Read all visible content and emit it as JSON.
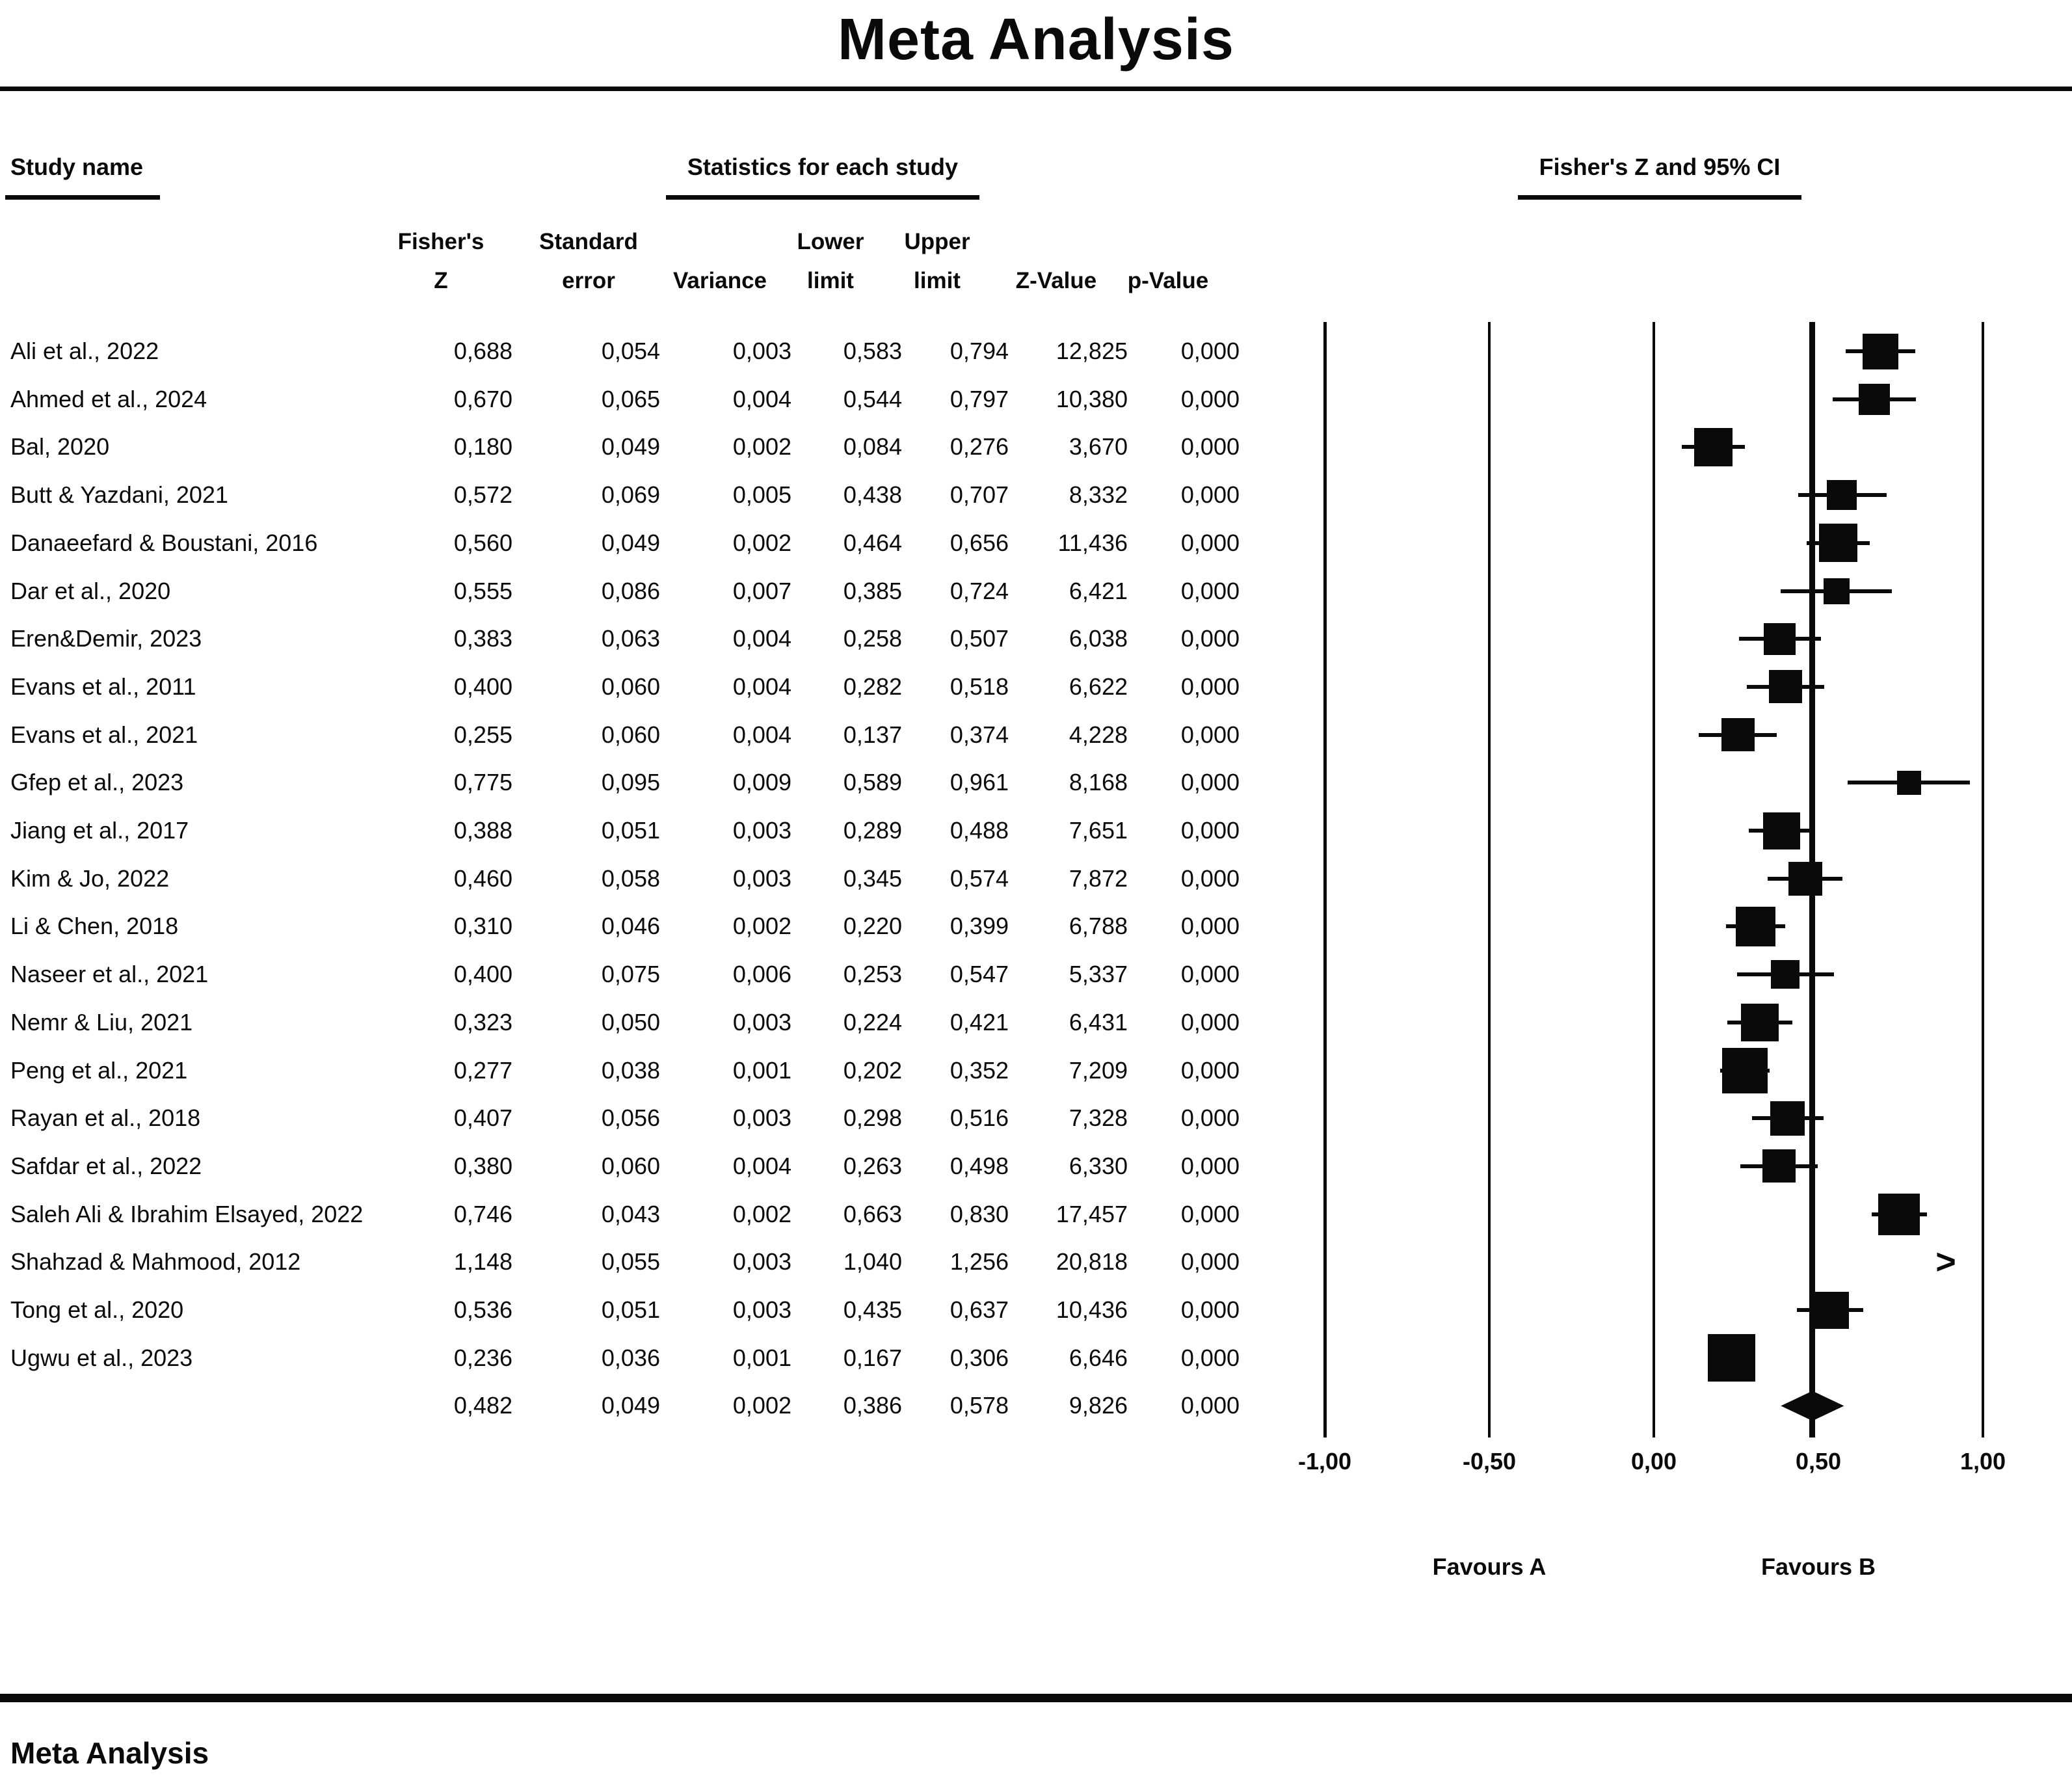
{
  "title": "Meta Analysis",
  "header": {
    "study_name": "Study name",
    "statistics_group": "Statistics for each study",
    "plot_group": "Fisher's Z and 95% CI",
    "columns": [
      {
        "top": "Fisher's",
        "bottom": "Z"
      },
      {
        "top": "Standard",
        "bottom": "error"
      },
      {
        "top": "",
        "bottom": "Variance"
      },
      {
        "top": "Lower",
        "bottom": "limit"
      },
      {
        "top": "Upper",
        "bottom": "limit"
      },
      {
        "top": "",
        "bottom": "Z-Value"
      },
      {
        "top": "",
        "bottom": "p-Value"
      }
    ]
  },
  "footer": {
    "title": "Meta Analysis"
  },
  "chart_data": {
    "type": "forest",
    "effect_measure": "Fisher's Z",
    "x_axis": {
      "range": [
        -1,
        1
      ],
      "ticks": [
        {
          "value": -1.0,
          "label": "-1,00"
        },
        {
          "value": -0.5,
          "label": "-0,50"
        },
        {
          "value": 0.0,
          "label": "0,00"
        },
        {
          "value": 0.5,
          "label": "0,50"
        },
        {
          "value": 1.0,
          "label": "1,00"
        }
      ]
    },
    "favours_left": "Favours A",
    "favours_right": "Favours B",
    "pooled_reference_line": 0.482,
    "studies": [
      {
        "name": "Ali et al., 2022",
        "fishers_z": 0.688,
        "standard_error": 0.054,
        "variance": 0.003,
        "lower_limit": 0.583,
        "upper_limit": 0.794,
        "z_value": 12.825,
        "p_value": 0.0
      },
      {
        "name": "Ahmed et al., 2024",
        "fishers_z": 0.67,
        "standard_error": 0.065,
        "variance": 0.004,
        "lower_limit": 0.544,
        "upper_limit": 0.797,
        "z_value": 10.38,
        "p_value": 0.0
      },
      {
        "name": "Bal, 2020",
        "fishers_z": 0.18,
        "standard_error": 0.049,
        "variance": 0.002,
        "lower_limit": 0.084,
        "upper_limit": 0.276,
        "z_value": 3.67,
        "p_value": 0.0
      },
      {
        "name": "Butt & Yazdani, 2021",
        "fishers_z": 0.572,
        "standard_error": 0.069,
        "variance": 0.005,
        "lower_limit": 0.438,
        "upper_limit": 0.707,
        "z_value": 8.332,
        "p_value": 0.0
      },
      {
        "name": "Danaeefard & Boustani, 2016",
        "fishers_z": 0.56,
        "standard_error": 0.049,
        "variance": 0.002,
        "lower_limit": 0.464,
        "upper_limit": 0.656,
        "z_value": 11.436,
        "p_value": 0.0
      },
      {
        "name": "Dar et al., 2020",
        "fishers_z": 0.555,
        "standard_error": 0.086,
        "variance": 0.007,
        "lower_limit": 0.385,
        "upper_limit": 0.724,
        "z_value": 6.421,
        "p_value": 0.0
      },
      {
        "name": "Eren&Demir, 2023",
        "fishers_z": 0.383,
        "standard_error": 0.063,
        "variance": 0.004,
        "lower_limit": 0.258,
        "upper_limit": 0.507,
        "z_value": 6.038,
        "p_value": 0.0
      },
      {
        "name": "Evans et al., 2011",
        "fishers_z": 0.4,
        "standard_error": 0.06,
        "variance": 0.004,
        "lower_limit": 0.282,
        "upper_limit": 0.518,
        "z_value": 6.622,
        "p_value": 0.0
      },
      {
        "name": "Evans et al., 2021",
        "fishers_z": 0.255,
        "standard_error": 0.06,
        "variance": 0.004,
        "lower_limit": 0.137,
        "upper_limit": 0.374,
        "z_value": 4.228,
        "p_value": 0.0
      },
      {
        "name": "Gfep et al., 2023",
        "fishers_z": 0.775,
        "standard_error": 0.095,
        "variance": 0.009,
        "lower_limit": 0.589,
        "upper_limit": 0.961,
        "z_value": 8.168,
        "p_value": 0.0
      },
      {
        "name": "Jiang et al., 2017",
        "fishers_z": 0.388,
        "standard_error": 0.051,
        "variance": 0.003,
        "lower_limit": 0.289,
        "upper_limit": 0.488,
        "z_value": 7.651,
        "p_value": 0.0
      },
      {
        "name": "Kim & Jo, 2022",
        "fishers_z": 0.46,
        "standard_error": 0.058,
        "variance": 0.003,
        "lower_limit": 0.345,
        "upper_limit": 0.574,
        "z_value": 7.872,
        "p_value": 0.0
      },
      {
        "name": "Li & Chen, 2018",
        "fishers_z": 0.31,
        "standard_error": 0.046,
        "variance": 0.002,
        "lower_limit": 0.22,
        "upper_limit": 0.399,
        "z_value": 6.788,
        "p_value": 0.0
      },
      {
        "name": "Naseer et al., 2021",
        "fishers_z": 0.4,
        "standard_error": 0.075,
        "variance": 0.006,
        "lower_limit": 0.253,
        "upper_limit": 0.547,
        "z_value": 5.337,
        "p_value": 0.0
      },
      {
        "name": "Nemr & Liu, 2021",
        "fishers_z": 0.323,
        "standard_error": 0.05,
        "variance": 0.003,
        "lower_limit": 0.224,
        "upper_limit": 0.421,
        "z_value": 6.431,
        "p_value": 0.0
      },
      {
        "name": "Peng et al., 2021",
        "fishers_z": 0.277,
        "standard_error": 0.038,
        "variance": 0.001,
        "lower_limit": 0.202,
        "upper_limit": 0.352,
        "z_value": 7.209,
        "p_value": 0.0
      },
      {
        "name": "Rayan et al., 2018",
        "fishers_z": 0.407,
        "standard_error": 0.056,
        "variance": 0.003,
        "lower_limit": 0.298,
        "upper_limit": 0.516,
        "z_value": 7.328,
        "p_value": 0.0
      },
      {
        "name": "Safdar et al., 2022",
        "fishers_z": 0.38,
        "standard_error": 0.06,
        "variance": 0.004,
        "lower_limit": 0.263,
        "upper_limit": 0.498,
        "z_value": 6.33,
        "p_value": 0.0
      },
      {
        "name": "Saleh Ali & Ibrahim Elsayed, 2022",
        "fishers_z": 0.746,
        "standard_error": 0.043,
        "variance": 0.002,
        "lower_limit": 0.663,
        "upper_limit": 0.83,
        "z_value": 17.457,
        "p_value": 0.0
      },
      {
        "name": "Shahzad & Mahmood, 2012",
        "fishers_z": 1.148,
        "standard_error": 0.055,
        "variance": 0.003,
        "lower_limit": 1.04,
        "upper_limit": 1.256,
        "z_value": 20.818,
        "p_value": 0.0
      },
      {
        "name": "Tong et al., 2020",
        "fishers_z": 0.536,
        "standard_error": 0.051,
        "variance": 0.003,
        "lower_limit": 0.435,
        "upper_limit": 0.637,
        "z_value": 10.436,
        "p_value": 0.0
      },
      {
        "name": "Ugwu et al., 2023",
        "fishers_z": 0.236,
        "standard_error": 0.036,
        "variance": 0.001,
        "lower_limit": 0.167,
        "upper_limit": 0.306,
        "z_value": 6.646,
        "p_value": 0.0
      }
    ],
    "summary": {
      "fishers_z": 0.482,
      "standard_error": 0.049,
      "variance": 0.002,
      "lower_limit": 0.386,
      "upper_limit": 0.578,
      "z_value": 9.826,
      "p_value": 0.0
    }
  }
}
